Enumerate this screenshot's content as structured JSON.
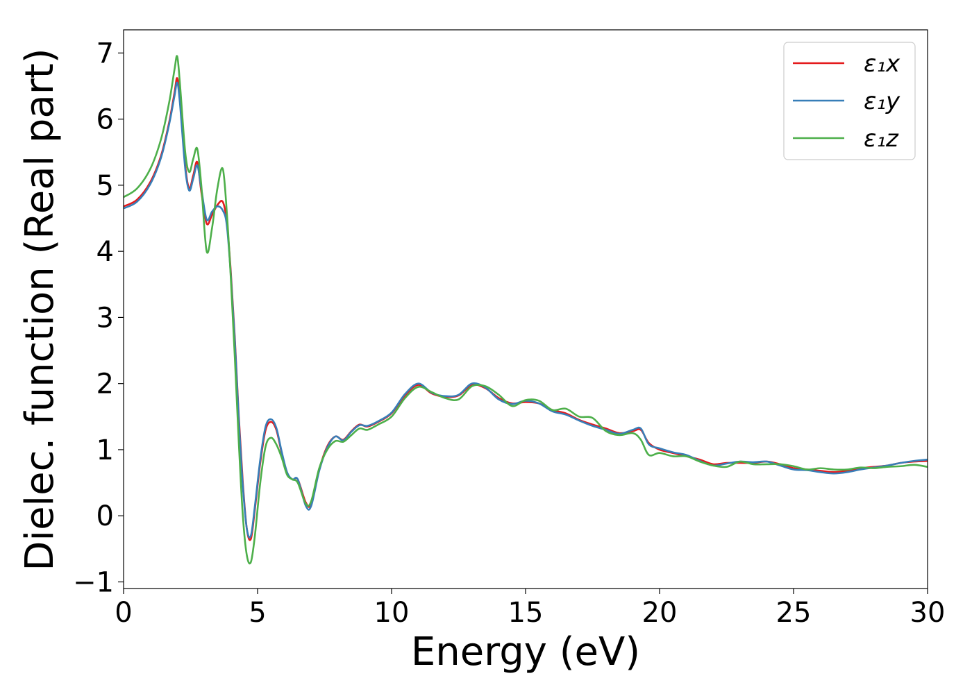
{
  "chart_data": {
    "type": "line",
    "title": "",
    "xlabel": "Energy (eV)",
    "ylabel": "Dielec. function (Real part)",
    "xlim": [
      0,
      30
    ],
    "ylim": [
      -1.1,
      7.35
    ],
    "xticks": [
      0,
      5,
      10,
      15,
      20,
      25,
      30
    ],
    "xtick_labels": [
      "0",
      "5",
      "10",
      "15",
      "20",
      "25",
      "30"
    ],
    "yticks": [
      -1,
      0,
      1,
      2,
      3,
      4,
      5,
      6,
      7
    ],
    "ytick_labels": [
      "−1",
      "0",
      "1",
      "2",
      "3",
      "4",
      "5",
      "6",
      "7"
    ],
    "grid": false,
    "legend_position": "top-right",
    "series": [
      {
        "name": "ε₁x",
        "color": "#e41a1c",
        "x": [
          0,
          0.5,
          1.0,
          1.4,
          1.7,
          1.9,
          2.0,
          2.1,
          2.3,
          2.45,
          2.6,
          2.75,
          2.9,
          3.1,
          3.3,
          3.5,
          3.7,
          3.85,
          4.0,
          4.15,
          4.3,
          4.45,
          4.6,
          4.75,
          4.9,
          5.1,
          5.3,
          5.5,
          5.7,
          5.9,
          6.1,
          6.3,
          6.5,
          6.8,
          7.0,
          7.3,
          7.6,
          7.9,
          8.2,
          8.5,
          8.8,
          9.1,
          9.5,
          10.0,
          10.5,
          11.0,
          11.5,
          12.0,
          12.5,
          13.0,
          13.5,
          14.0,
          14.5,
          15.0,
          15.5,
          16.0,
          16.5,
          17.0,
          17.5,
          18.0,
          18.5,
          19.0,
          19.3,
          19.6,
          20.0,
          20.5,
          21.0,
          21.5,
          22.0,
          22.5,
          23.0,
          23.5,
          24.0,
          24.5,
          25.0,
          25.5,
          26.0,
          26.5,
          27.0,
          27.5,
          28.0,
          28.5,
          29.0,
          29.5,
          30.0
        ],
        "y": [
          4.68,
          4.78,
          5.05,
          5.45,
          5.95,
          6.4,
          6.62,
          6.3,
          5.3,
          4.95,
          5.15,
          5.35,
          4.9,
          4.42,
          4.55,
          4.7,
          4.75,
          4.45,
          3.7,
          2.7,
          1.5,
          0.5,
          -0.2,
          -0.35,
          0.1,
          0.8,
          1.3,
          1.42,
          1.3,
          0.95,
          0.65,
          0.55,
          0.55,
          0.2,
          0.18,
          0.7,
          1.05,
          1.2,
          1.15,
          1.28,
          1.38,
          1.35,
          1.42,
          1.55,
          1.82,
          1.98,
          1.85,
          1.8,
          1.82,
          1.98,
          1.93,
          1.78,
          1.7,
          1.72,
          1.7,
          1.6,
          1.55,
          1.45,
          1.38,
          1.32,
          1.25,
          1.28,
          1.3,
          1.1,
          1.0,
          0.95,
          0.9,
          0.85,
          0.78,
          0.8,
          0.8,
          0.8,
          0.82,
          0.78,
          0.72,
          0.7,
          0.68,
          0.66,
          0.68,
          0.72,
          0.74,
          0.76,
          0.8,
          0.82,
          0.83
        ]
      },
      {
        "name": "ε₁y",
        "color": "#377eb8",
        "x": [
          0,
          0.5,
          1.0,
          1.4,
          1.7,
          1.9,
          2.0,
          2.1,
          2.3,
          2.45,
          2.6,
          2.75,
          2.9,
          3.1,
          3.3,
          3.5,
          3.7,
          3.85,
          4.0,
          4.15,
          4.3,
          4.45,
          4.6,
          4.75,
          4.9,
          5.1,
          5.3,
          5.5,
          5.7,
          5.9,
          6.1,
          6.3,
          6.5,
          6.8,
          7.0,
          7.3,
          7.6,
          7.9,
          8.2,
          8.5,
          8.8,
          9.1,
          9.5,
          10.0,
          10.5,
          11.0,
          11.5,
          12.0,
          12.5,
          13.0,
          13.5,
          14.0,
          14.5,
          15.0,
          15.5,
          16.0,
          16.5,
          17.0,
          17.5,
          18.0,
          18.5,
          19.0,
          19.3,
          19.6,
          20.0,
          20.5,
          21.0,
          21.5,
          22.0,
          22.5,
          23.0,
          23.5,
          24.0,
          24.5,
          25.0,
          25.5,
          26.0,
          26.5,
          27.0,
          27.5,
          28.0,
          28.5,
          29.0,
          29.5,
          30.0
        ],
        "y": [
          4.65,
          4.75,
          5.02,
          5.42,
          5.92,
          6.35,
          6.55,
          6.25,
          5.25,
          4.92,
          5.1,
          5.3,
          4.95,
          4.48,
          4.6,
          4.68,
          4.62,
          4.4,
          3.65,
          2.65,
          1.45,
          0.45,
          -0.2,
          -0.3,
          0.15,
          0.85,
          1.35,
          1.46,
          1.33,
          0.97,
          0.66,
          0.55,
          0.55,
          0.15,
          0.15,
          0.68,
          1.03,
          1.2,
          1.14,
          1.27,
          1.37,
          1.36,
          1.43,
          1.56,
          1.84,
          2.0,
          1.86,
          1.81,
          1.83,
          2.0,
          1.94,
          1.76,
          1.69,
          1.74,
          1.7,
          1.58,
          1.53,
          1.44,
          1.36,
          1.3,
          1.24,
          1.3,
          1.32,
          1.08,
          1.02,
          0.96,
          0.92,
          0.83,
          0.76,
          0.79,
          0.82,
          0.81,
          0.82,
          0.76,
          0.7,
          0.69,
          0.66,
          0.64,
          0.66,
          0.7,
          0.73,
          0.76,
          0.8,
          0.83,
          0.85
        ]
      },
      {
        "name": "ε₁z",
        "color": "#4daf4a",
        "x": [
          0,
          0.5,
          1.0,
          1.4,
          1.7,
          1.9,
          2.0,
          2.1,
          2.3,
          2.45,
          2.6,
          2.75,
          2.9,
          3.1,
          3.3,
          3.5,
          3.7,
          3.85,
          4.0,
          4.15,
          4.3,
          4.45,
          4.6,
          4.75,
          4.9,
          5.1,
          5.3,
          5.5,
          5.7,
          5.9,
          6.1,
          6.3,
          6.5,
          6.8,
          7.0,
          7.3,
          7.6,
          7.9,
          8.2,
          8.5,
          8.8,
          9.1,
          9.5,
          10.0,
          10.5,
          11.0,
          11.5,
          12.0,
          12.5,
          13.0,
          13.5,
          14.0,
          14.5,
          15.0,
          15.5,
          16.0,
          16.5,
          17.0,
          17.5,
          18.0,
          18.5,
          19.0,
          19.3,
          19.6,
          20.0,
          20.5,
          21.0,
          21.5,
          22.0,
          22.5,
          23.0,
          23.5,
          24.0,
          24.5,
          25.0,
          25.5,
          26.0,
          26.5,
          27.0,
          27.5,
          28.0,
          28.5,
          29.0,
          29.5,
          30.0
        ],
        "y": [
          4.82,
          4.95,
          5.25,
          5.7,
          6.25,
          6.75,
          6.95,
          6.55,
          5.5,
          5.2,
          5.4,
          5.55,
          5.0,
          4.0,
          4.35,
          4.95,
          5.25,
          4.6,
          3.6,
          2.4,
          1.1,
          0.0,
          -0.6,
          -0.7,
          -0.3,
          0.5,
          1.05,
          1.18,
          1.08,
          0.88,
          0.62,
          0.55,
          0.5,
          0.18,
          0.22,
          0.72,
          1.0,
          1.13,
          1.12,
          1.22,
          1.32,
          1.3,
          1.38,
          1.5,
          1.78,
          1.95,
          1.87,
          1.78,
          1.76,
          1.96,
          1.96,
          1.83,
          1.66,
          1.75,
          1.74,
          1.6,
          1.62,
          1.5,
          1.48,
          1.28,
          1.22,
          1.25,
          1.15,
          0.92,
          0.95,
          0.9,
          0.9,
          0.82,
          0.76,
          0.74,
          0.82,
          0.78,
          0.78,
          0.78,
          0.75,
          0.7,
          0.72,
          0.7,
          0.7,
          0.73,
          0.72,
          0.74,
          0.75,
          0.77,
          0.74
        ]
      }
    ]
  }
}
